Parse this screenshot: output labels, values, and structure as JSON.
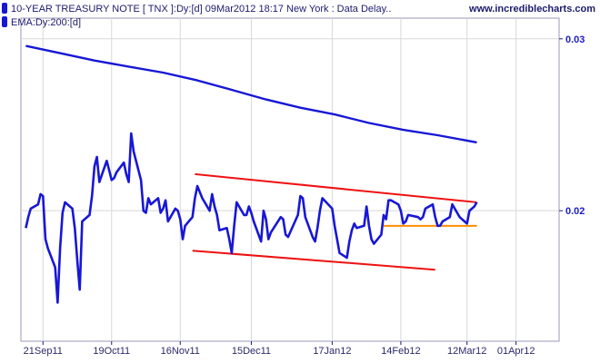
{
  "header": {
    "title": "10-YEAR TREASURY NOTE [ TNX ]:Dy:[d]  09Mar2012 18:17 New York : Data Delay..",
    "ema_label": "EMA:Dy:200:[d]",
    "site": "www.incrediblecharts.com"
  },
  "colors": {
    "price": "#1717d6",
    "ema": "#1717d6",
    "trendline": "#ee1111",
    "support": "#ff8c00",
    "grid": "#d8d8d8",
    "axis": "#1a1a80"
  },
  "chart_data": {
    "type": "line",
    "title": "10-YEAR TREASURY NOTE [ TNX ]:Dy:[d]  09Mar2012 18:17 New York : Data Delay..",
    "xlabel": "",
    "ylabel": "",
    "x_ticks": [
      "21Sep11",
      "19Oct11",
      "16Nov11",
      "15Dec11",
      "17Jan12",
      "14Feb12",
      "12Mar12",
      "01Apr12"
    ],
    "y_ticks": [
      "0.03",
      "0.02"
    ],
    "y_tick_values": [
      0.03,
      0.02
    ],
    "xlim": [
      "2011-09-12",
      "2012-04-13"
    ],
    "ylim": [
      0.0147,
      0.0315
    ],
    "y_scale": "log",
    "grid": true,
    "legend": "top-left",
    "series": [
      {
        "name": "10-YEAR TREASURY NOTE [ TNX ]:Dy:[d]",
        "points": [
          [
            "2011-09-14",
            0.0192
          ],
          [
            "2011-09-15",
            0.0197
          ],
          [
            "2011-09-16",
            0.0201
          ],
          [
            "2011-09-19",
            0.0203
          ],
          [
            "2011-09-20",
            0.0208
          ],
          [
            "2011-09-21",
            0.0207
          ],
          [
            "2011-09-22",
            0.0187
          ],
          [
            "2011-09-23",
            0.0183
          ],
          [
            "2011-09-26",
            0.0175
          ],
          [
            "2011-09-27",
            0.0161
          ],
          [
            "2011-09-28",
            0.0183
          ],
          [
            "2011-09-29",
            0.0199
          ],
          [
            "2011-09-30",
            0.0204
          ],
          [
            "2011-10-03",
            0.0201
          ],
          [
            "2011-10-04",
            0.0192
          ],
          [
            "2011-10-05",
            0.0178
          ],
          [
            "2011-10-06",
            0.0166
          ],
          [
            "2011-10-07",
            0.0195
          ],
          [
            "2011-10-10",
            0.0198
          ],
          [
            "2011-10-11",
            0.0207
          ],
          [
            "2011-10-12",
            0.0222
          ],
          [
            "2011-10-13",
            0.0227
          ],
          [
            "2011-10-14",
            0.0214
          ],
          [
            "2011-10-17",
            0.0225
          ],
          [
            "2011-10-18",
            0.022
          ],
          [
            "2011-10-19",
            0.0215
          ],
          [
            "2011-10-20",
            0.0216
          ],
          [
            "2011-10-21",
            0.0219
          ],
          [
            "2011-10-24",
            0.0224
          ],
          [
            "2011-10-25",
            0.0218
          ],
          [
            "2011-10-26",
            0.0214
          ],
          [
            "2011-10-27",
            0.024
          ],
          [
            "2011-10-28",
            0.023
          ],
          [
            "2011-10-31",
            0.0215
          ],
          [
            "2011-11-01",
            0.02
          ],
          [
            "2011-11-02",
            0.0199
          ],
          [
            "2011-11-03",
            0.0206
          ],
          [
            "2011-11-04",
            0.0203
          ],
          [
            "2011-11-07",
            0.0206
          ],
          [
            "2011-11-08",
            0.0199
          ],
          [
            "2011-11-09",
            0.0201
          ],
          [
            "2011-11-10",
            0.0205
          ],
          [
            "2011-11-11",
            0.0195
          ],
          [
            "2011-11-14",
            0.0201
          ],
          [
            "2011-11-15",
            0.02
          ],
          [
            "2011-11-16",
            0.0196
          ],
          [
            "2011-11-17",
            0.0187
          ],
          [
            "2011-11-18",
            0.0193
          ],
          [
            "2011-11-21",
            0.0197
          ],
          [
            "2011-11-22",
            0.0206
          ],
          [
            "2011-11-23",
            0.0212
          ],
          [
            "2011-11-25",
            0.0206
          ],
          [
            "2011-11-28",
            0.02
          ],
          [
            "2011-11-29",
            0.0208
          ],
          [
            "2011-11-30",
            0.0202
          ],
          [
            "2011-12-01",
            0.0198
          ],
          [
            "2011-12-02",
            0.0191
          ],
          [
            "2011-12-05",
            0.0192
          ],
          [
            "2011-12-06",
            0.0187
          ],
          [
            "2011-12-07",
            0.0181
          ],
          [
            "2011-12-08",
            0.0193
          ],
          [
            "2011-12-09",
            0.0204
          ],
          [
            "2011-12-12",
            0.0198
          ],
          [
            "2011-12-13",
            0.0198
          ],
          [
            "2011-12-14",
            0.0202
          ],
          [
            "2011-12-15",
            0.0199
          ],
          [
            "2011-12-16",
            0.0195
          ],
          [
            "2011-12-19",
            0.0186
          ],
          [
            "2011-12-20",
            0.02
          ],
          [
            "2011-12-21",
            0.0196
          ],
          [
            "2011-12-22",
            0.0187
          ],
          [
            "2011-12-23",
            0.019
          ],
          [
            "2011-12-27",
            0.0197
          ],
          [
            "2011-12-28",
            0.0196
          ],
          [
            "2011-12-29",
            0.0189
          ],
          [
            "2011-12-30",
            0.0188
          ],
          [
            "2012-01-03",
            0.0198
          ],
          [
            "2012-01-04",
            0.0207
          ],
          [
            "2012-01-05",
            0.0206
          ],
          [
            "2012-01-06",
            0.0197
          ],
          [
            "2012-01-09",
            0.0188
          ],
          [
            "2012-01-10",
            0.0186
          ],
          [
            "2012-01-11",
            0.0192
          ],
          [
            "2012-01-12",
            0.02
          ],
          [
            "2012-01-13",
            0.0206
          ],
          [
            "2012-01-17",
            0.0201
          ],
          [
            "2012-01-18",
            0.0193
          ],
          [
            "2012-01-19",
            0.0187
          ],
          [
            "2012-01-20",
            0.0181
          ],
          [
            "2012-01-23",
            0.0179
          ],
          [
            "2012-01-24",
            0.0186
          ],
          [
            "2012-01-25",
            0.0191
          ],
          [
            "2012-01-26",
            0.0194
          ],
          [
            "2012-01-27",
            0.0192
          ],
          [
            "2012-01-30",
            0.0193
          ],
          [
            "2012-01-31",
            0.0202
          ],
          [
            "2012-02-01",
            0.0193
          ],
          [
            "2012-02-02",
            0.0187
          ],
          [
            "2012-02-03",
            0.0185
          ],
          [
            "2012-02-06",
            0.0189
          ],
          [
            "2012-02-07",
            0.0198
          ],
          [
            "2012-02-08",
            0.0196
          ],
          [
            "2012-02-09",
            0.0205
          ],
          [
            "2012-02-10",
            0.0205
          ],
          [
            "2012-02-13",
            0.0203
          ],
          [
            "2012-02-14",
            0.02
          ],
          [
            "2012-02-15",
            0.0194
          ],
          [
            "2012-02-16",
            0.0195
          ],
          [
            "2012-02-17",
            0.0198
          ],
          [
            "2012-02-21",
            0.0197
          ],
          [
            "2012-02-22",
            0.0196
          ],
          [
            "2012-02-23",
            0.0197
          ],
          [
            "2012-02-24",
            0.0201
          ],
          [
            "2012-02-27",
            0.0203
          ],
          [
            "2012-02-28",
            0.0197
          ],
          [
            "2012-02-29",
            0.0193
          ],
          [
            "2012-03-01",
            0.0193
          ],
          [
            "2012-03-02",
            0.0195
          ],
          [
            "2012-03-05",
            0.0197
          ],
          [
            "2012-03-06",
            0.0203
          ],
          [
            "2012-03-07",
            0.0201
          ],
          [
            "2012-03-08",
            0.0199
          ],
          [
            "2012-03-09",
            0.0197
          ],
          [
            "2012-03-12",
            0.0194
          ],
          [
            "2012-03-13",
            0.02
          ],
          [
            "2012-03-14",
            0.0201
          ],
          [
            "2012-03-15",
            0.0202
          ],
          [
            "2012-03-16",
            0.0204
          ]
        ]
      },
      {
        "name": "EMA:Dy:200:[d]",
        "points": [
          [
            "2011-09-14",
            0.0295
          ],
          [
            "2011-09-28",
            0.029
          ],
          [
            "2011-10-12",
            0.0285
          ],
          [
            "2011-10-26",
            0.0281
          ],
          [
            "2011-11-09",
            0.0277
          ],
          [
            "2011-11-23",
            0.0272
          ],
          [
            "2011-12-07",
            0.0266
          ],
          [
            "2011-12-21",
            0.026
          ],
          [
            "2012-01-04",
            0.0255
          ],
          [
            "2012-01-18",
            0.0251
          ],
          [
            "2012-02-01",
            0.0246
          ],
          [
            "2012-02-15",
            0.0242
          ],
          [
            "2012-02-29",
            0.0239
          ],
          [
            "2012-03-16",
            0.0235
          ]
        ]
      }
    ],
    "annotations": [
      {
        "kind": "trendline",
        "color": "red",
        "points": [
          [
            "2011-11-22",
            0.0218
          ],
          [
            "2012-03-16",
            0.0204
          ]
        ]
      },
      {
        "kind": "trendline",
        "color": "red",
        "points": [
          [
            "2011-11-21",
            0.0182
          ],
          [
            "2012-02-28",
            0.0174
          ]
        ]
      },
      {
        "kind": "support",
        "color": "orange",
        "points": [
          [
            "2012-02-07",
            0.0193
          ],
          [
            "2012-03-16",
            0.0193
          ]
        ]
      }
    ]
  }
}
